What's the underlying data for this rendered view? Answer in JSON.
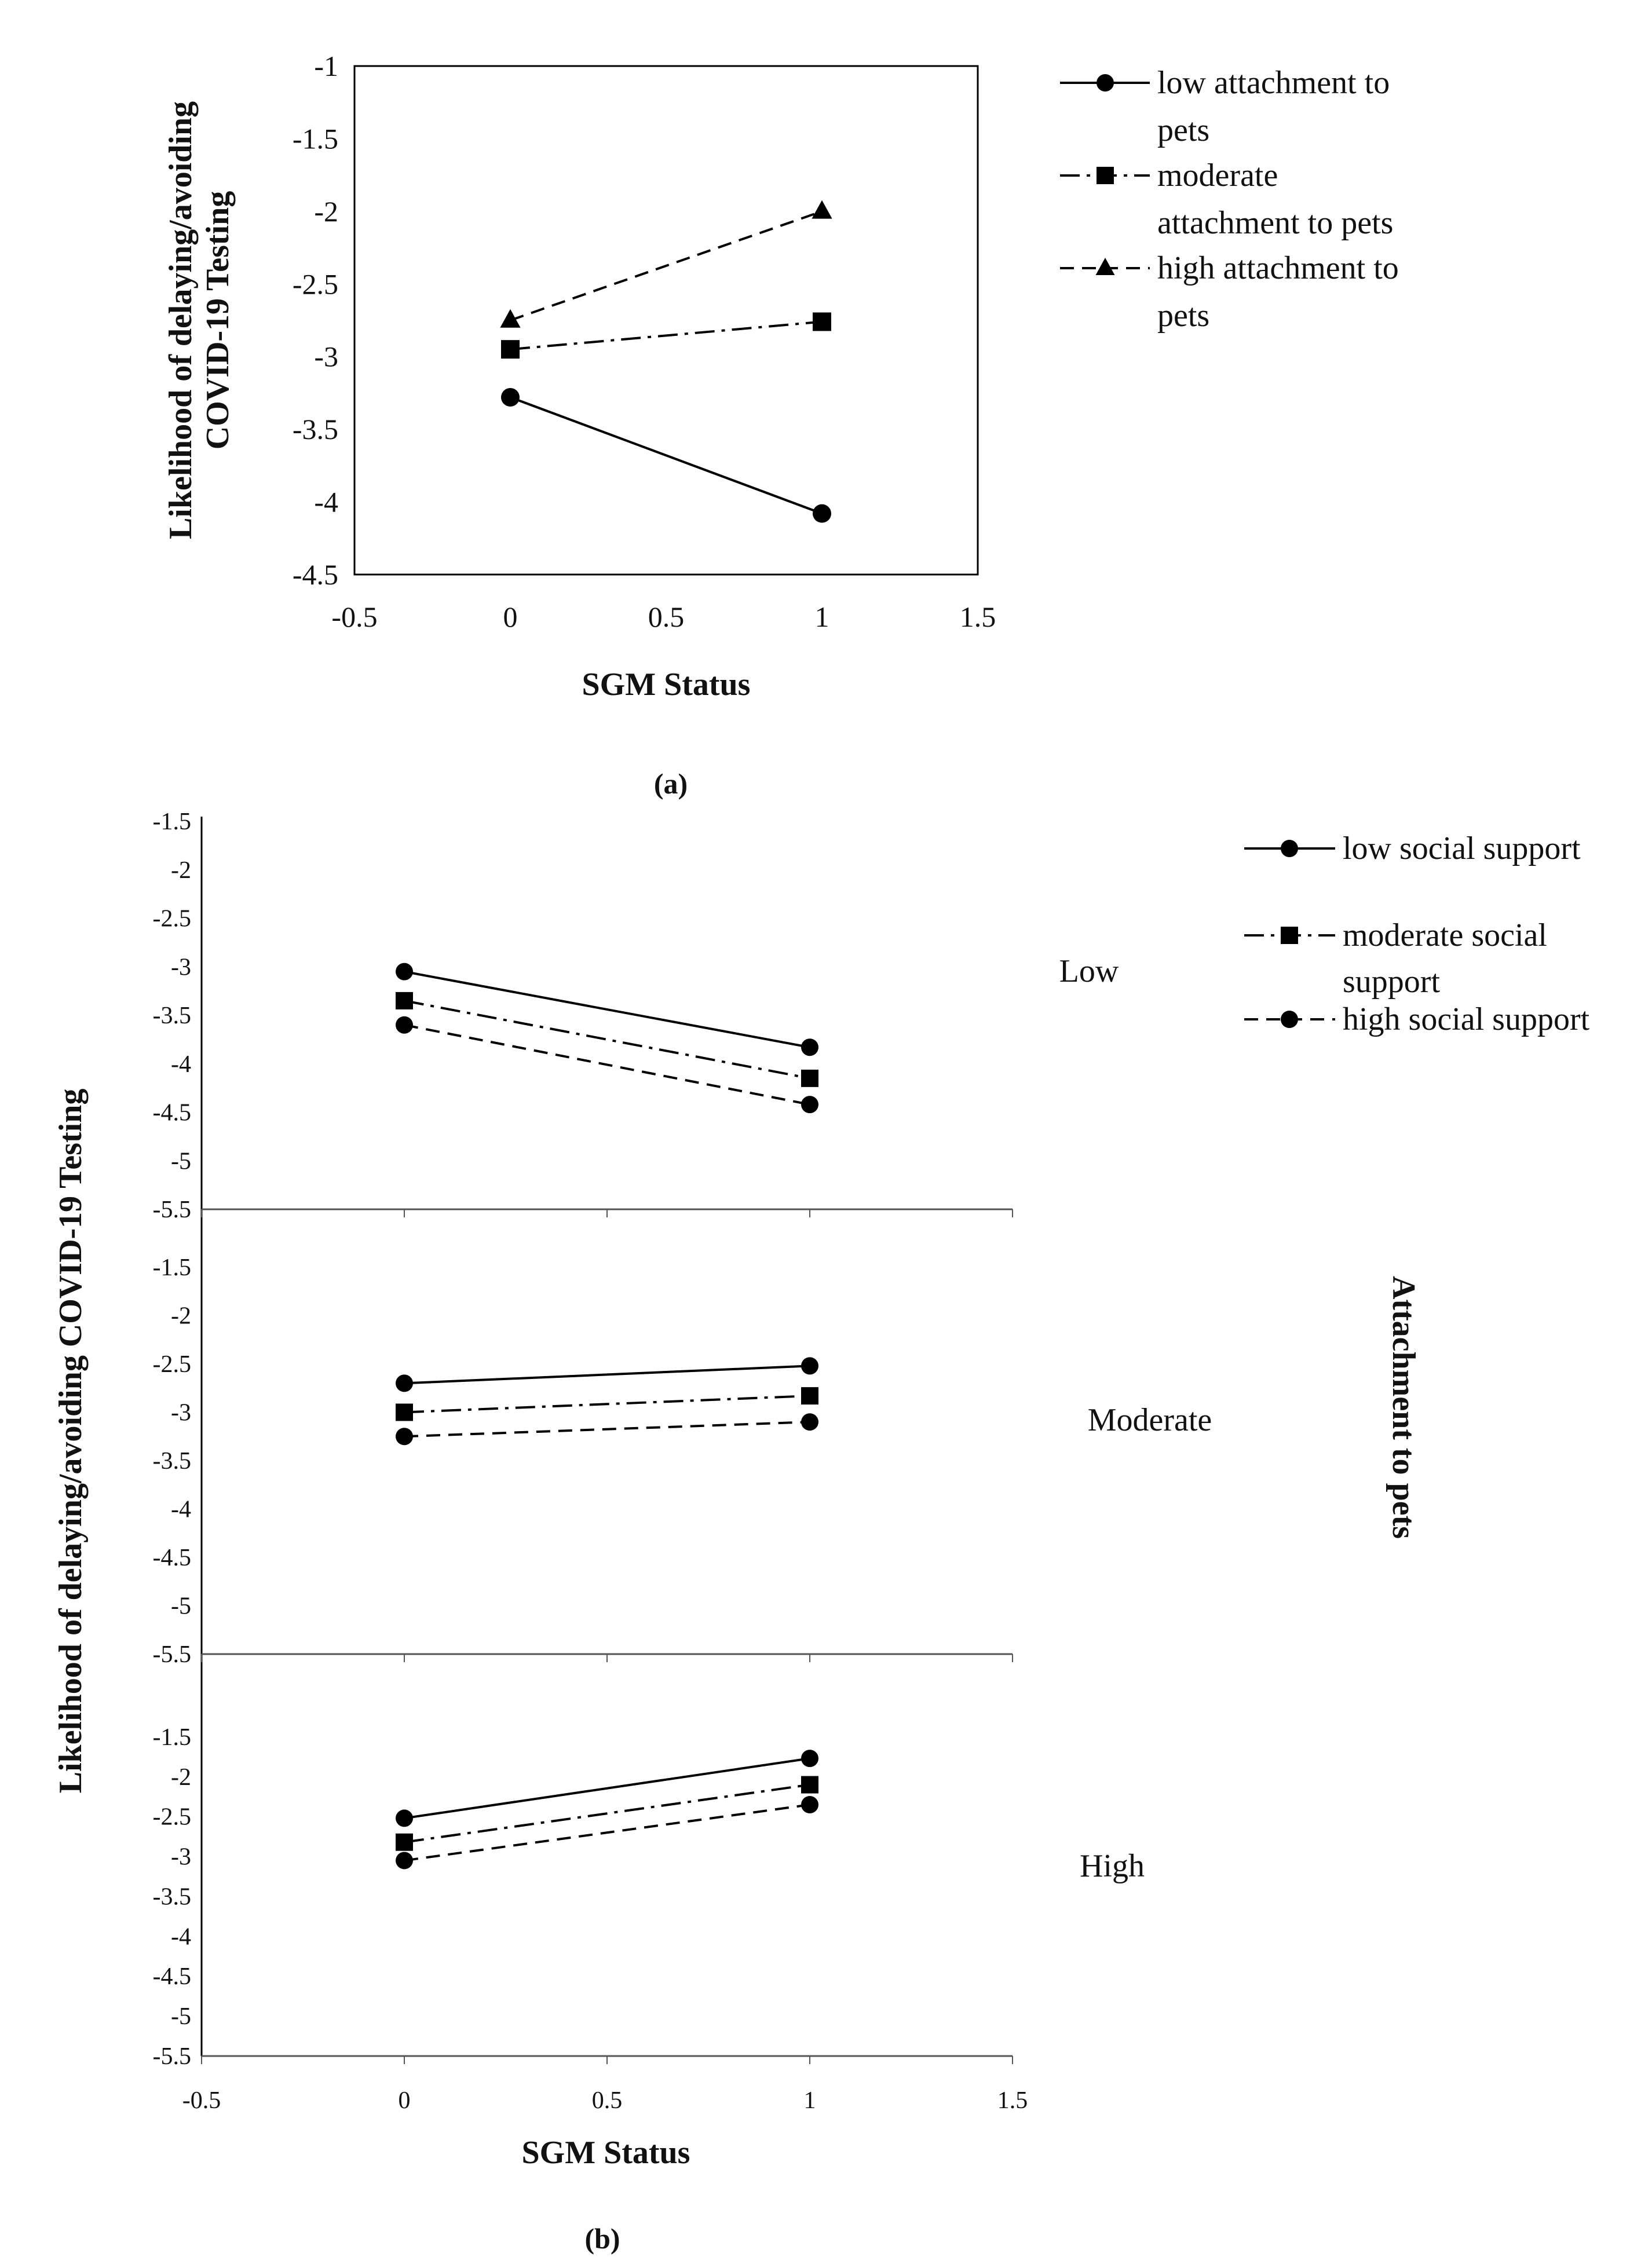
{
  "figure": {
    "caption_a": "(a)",
    "caption_b": "(b)"
  },
  "chart_data": [
    {
      "type": "line",
      "panel": "a",
      "title": "",
      "xlabel": "SGM Status",
      "ylabel_lines": [
        "Likelihood of delaying/avoiding",
        "COVID-19 Testing"
      ],
      "xlim": [
        -0.5,
        1.5
      ],
      "ylim": [
        -4.5,
        -1
      ],
      "x_ticks": [
        "-0.5",
        "0",
        "0.5",
        "1",
        "1.5"
      ],
      "y_ticks": [
        "-1",
        "-1.5",
        "-2",
        "-2.5",
        "-3",
        "-3.5",
        "-4",
        "-4.5"
      ],
      "x": [
        0,
        1
      ],
      "series": [
        {
          "name": "low attachment to pets",
          "legend_lines": [
            "low attachment to",
            "pets"
          ],
          "values": [
            -3.28,
            -4.08
          ],
          "marker": "circle",
          "dash": "solid"
        },
        {
          "name": "moderate attachment to pets",
          "legend_lines": [
            "moderate",
            "attachment to pets"
          ],
          "values": [
            -2.95,
            -2.76
          ],
          "marker": "square",
          "dash": "dashdot"
        },
        {
          "name": "high attachment to pets",
          "legend_lines": [
            "high attachment to",
            "pets"
          ],
          "values": [
            -2.75,
            -2.0
          ],
          "marker": "triangle",
          "dash": "dashed"
        }
      ],
      "legend_position": "right"
    },
    {
      "type": "line",
      "panel": "b",
      "title": "",
      "xlabel": "SGM Status",
      "ylabel": "Likelihood of delaying/avoiding COVID-19 Testing",
      "facet_title": "Attachment to pets",
      "xlim": [
        -0.5,
        1.5
      ],
      "x_ticks": [
        "-0.5",
        "0",
        "0.5",
        "1",
        "1.5"
      ],
      "x": [
        0,
        1
      ],
      "legend": [
        {
          "name": "low social support",
          "legend_lines": [
            "low social support"
          ],
          "marker": "circle",
          "dash": "solid"
        },
        {
          "name": "moderate social support",
          "legend_lines": [
            "moderate social",
            "support"
          ],
          "marker": "square",
          "dash": "dashdot"
        },
        {
          "name": "high social support",
          "legend_lines": [
            "high social support"
          ],
          "marker": "circle",
          "dash": "dashed"
        }
      ],
      "legend_position": "top-right",
      "facets": [
        {
          "label": "Low",
          "ylim": [
            -5.5,
            -1.5
          ],
          "y_ticks": [
            "-1.5",
            "-2",
            "-2.5",
            "-3",
            "-3.5",
            "-4",
            "-4.5",
            "-5",
            "-5.5"
          ],
          "series": [
            {
              "name": "low social support",
              "values": [
                -3.05,
                -3.83
              ]
            },
            {
              "name": "moderate social support",
              "values": [
                -3.35,
                -4.15
              ]
            },
            {
              "name": "high social support",
              "values": [
                -3.6,
                -4.42
              ]
            }
          ]
        },
        {
          "label": "Moderate",
          "ylim": [
            -5.5,
            -1.5
          ],
          "y_ticks": [
            "-1.5",
            "-2",
            "-2.5",
            "-3",
            "-3.5",
            "-4",
            "-4.5",
            "-5",
            "-5.5"
          ],
          "series": [
            {
              "name": "low social support",
              "values": [
                -2.7,
                -2.52
              ]
            },
            {
              "name": "moderate social support",
              "values": [
                -3.0,
                -2.83
              ]
            },
            {
              "name": "high social support",
              "values": [
                -3.25,
                -3.1
              ]
            }
          ]
        },
        {
          "label": "High",
          "ylim": [
            -5.5,
            -1.0
          ],
          "y_ticks": [
            "-1.5",
            "-2",
            "-2.5",
            "-3",
            "-3.5",
            "-4",
            "-4.5",
            "-5",
            "-5.5"
          ],
          "series": [
            {
              "name": "low social support",
              "values": [
                -2.52,
                -1.77
              ]
            },
            {
              "name": "moderate social support",
              "values": [
                -2.82,
                -2.1
              ]
            },
            {
              "name": "high social support",
              "values": [
                -3.05,
                -2.35
              ]
            }
          ]
        }
      ]
    }
  ]
}
